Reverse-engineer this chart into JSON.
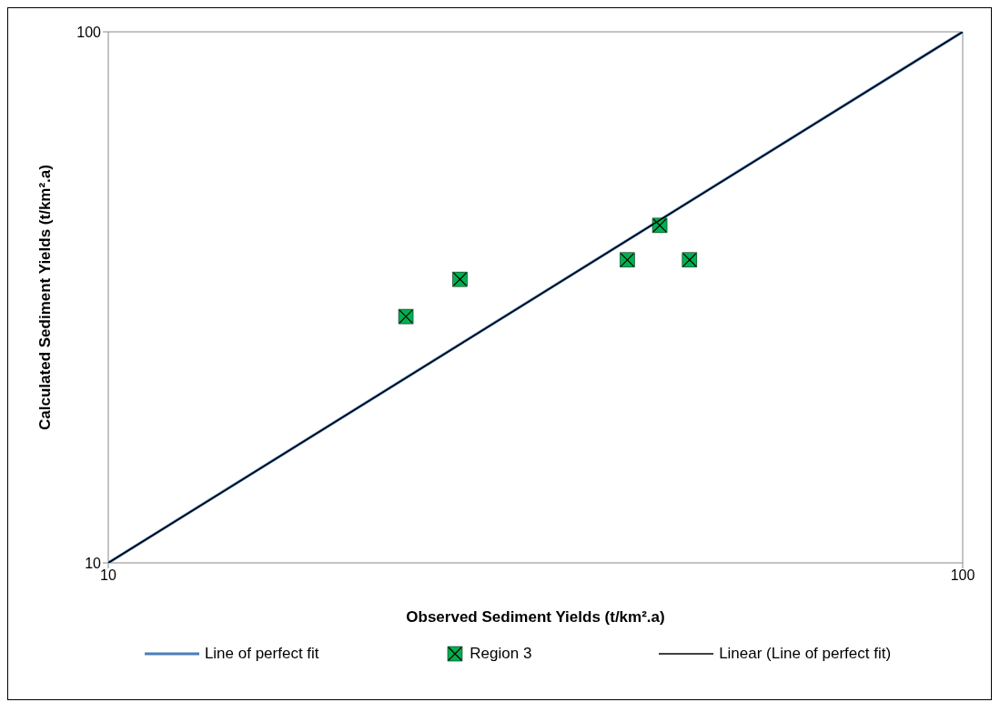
{
  "chart_data": {
    "type": "scatter",
    "xlabel": "Observed Sediment Yields (t/km².a)",
    "ylabel": "Calculated Sediment Yields (t/km².a)",
    "log": "xy",
    "xlim": [
      10,
      100
    ],
    "ylim": [
      10,
      100
    ],
    "xticks": [
      10,
      100
    ],
    "yticks": [
      10,
      100
    ],
    "legend": "bottom",
    "series": [
      {
        "name": "Line of perfect fit",
        "type": "line",
        "marker": "none",
        "color": "#4a7ebb",
        "x": [
          10,
          100
        ],
        "values": [
          10,
          100
        ]
      },
      {
        "name": "Region 3",
        "marker": "square",
        "color": "#00b050",
        "x": [
          22.3,
          25.8,
          40.5,
          44.2,
          47.9
        ],
        "values": [
          29.1,
          34.2,
          37.2,
          43.2,
          37.2
        ]
      },
      {
        "name": "Linear (Line of perfect fit)",
        "type": "line",
        "marker": "none",
        "color": "#000000",
        "x": [
          10,
          100
        ],
        "values": [
          10,
          100
        ]
      }
    ]
  }
}
